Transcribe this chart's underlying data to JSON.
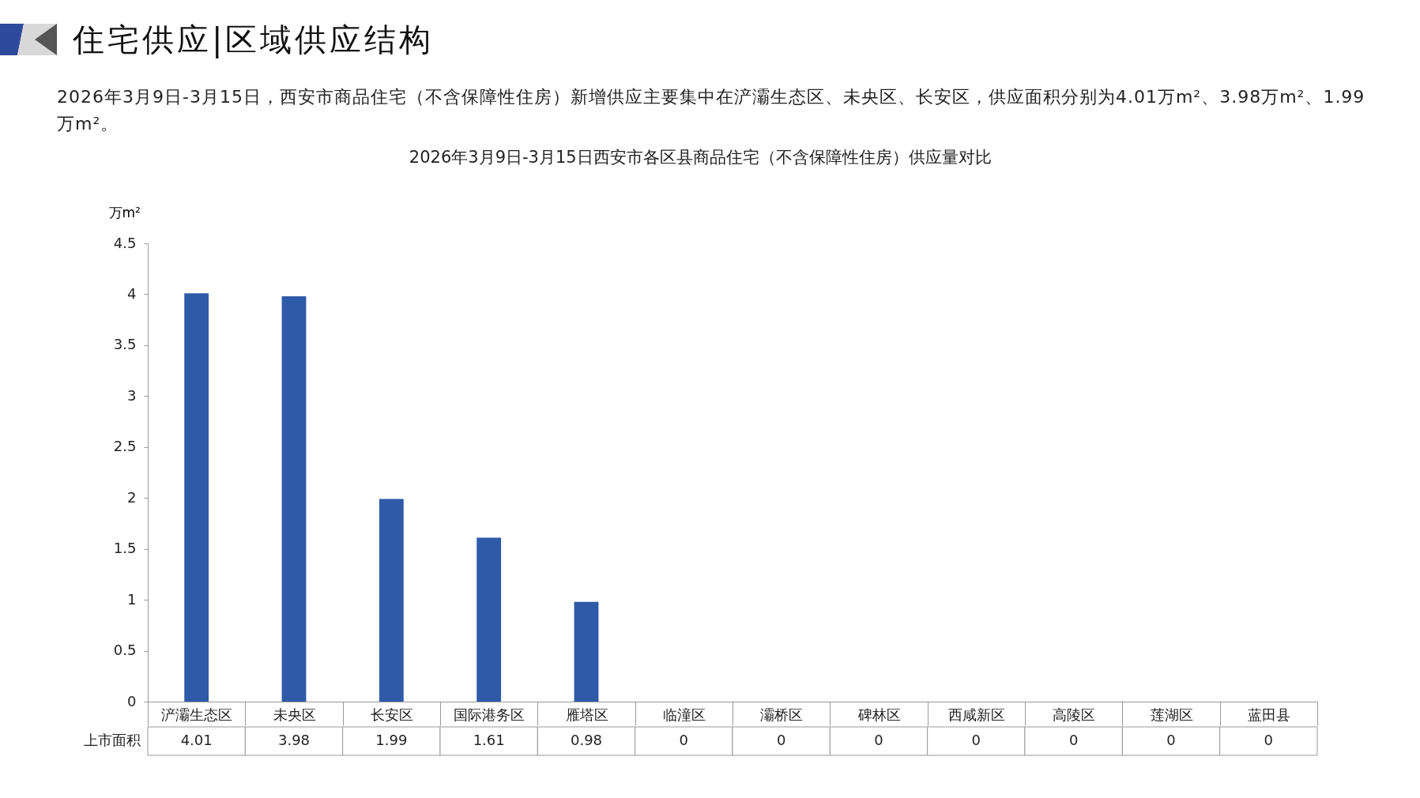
{
  "chart_data": {
    "type": "bar",
    "title": "住宅供应|区域供应结构",
    "subtitle": "2026年3月9日-3月15日，西安市商品住宅（不含保障性住房）新增供应主要集中在浐灞生态区、未央区、长安区，供应面积分别为4.01万m²、3.98万m²、1.99万m²。",
    "annotations": [
      "2026年3月9日-3月15日西安市各区县商品住宅（不含保障性住房）供应量对比"
    ],
    "ylabel": "万m²",
    "categories": [
      "浐灞生态区",
      "未央区",
      "长安区",
      "国际港务区",
      "雁塔区",
      "临潼区",
      "灞桥区",
      "碑林区",
      "西咸新区",
      "高陵区",
      "莲湖区",
      "蓝田县"
    ],
    "series": [
      {
        "name": "上市面积",
        "color": "#2e5aa7",
        "values": [
          4.01,
          3.98,
          1.99,
          1.61,
          0.98,
          0,
          0,
          0,
          0,
          0,
          0,
          0
        ]
      }
    ],
    "ylim": [
      0,
      4.5
    ],
    "yticks": [
      0,
      0.5,
      1,
      1.5,
      2,
      2.5,
      3,
      3.5,
      4,
      4.5
    ],
    "grid": false,
    "legend": false,
    "data_labels": true
  }
}
